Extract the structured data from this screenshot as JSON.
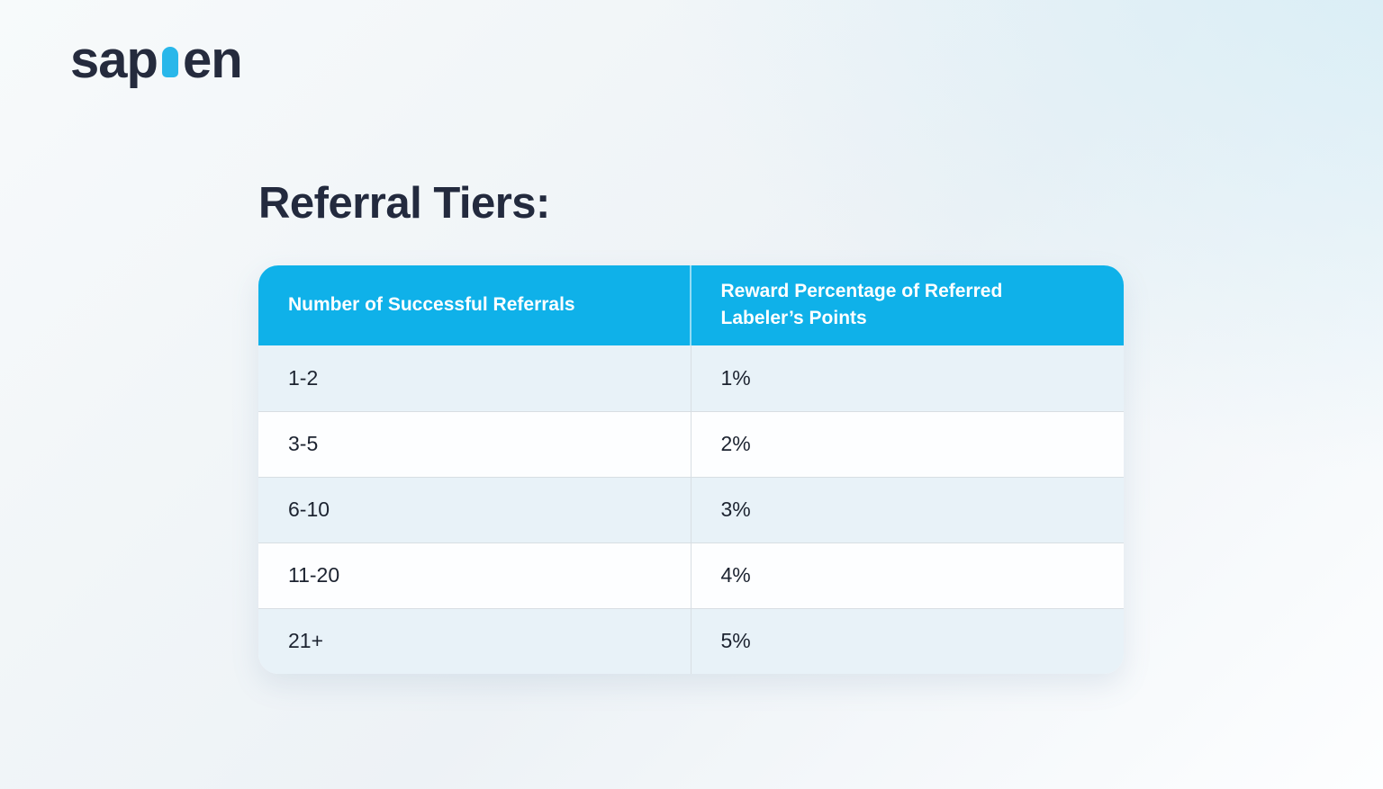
{
  "brand": {
    "logo_prefix": "sap",
    "logo_suffix": "en",
    "person_icon": "person glyph replacing the letter i"
  },
  "page": {
    "title": "Referral Tiers:"
  },
  "table": {
    "columns": [
      "Number of Successful Referrals",
      "Reward Percentage of Referred Labeler’s Points"
    ],
    "rows": [
      {
        "referrals": "1-2",
        "reward": "1%"
      },
      {
        "referrals": "3-5",
        "reward": "2%"
      },
      {
        "referrals": "6-10",
        "reward": "3%"
      },
      {
        "referrals": "11-20",
        "reward": "4%"
      },
      {
        "referrals": "21+",
        "reward": "5%"
      }
    ]
  },
  "colors": {
    "header_background": "#0fb1e9",
    "alt_row_background": "#e8f2f8",
    "plain_row_background": "#fdfeff",
    "row_divider": "#d8dee3",
    "body_text": "#1c2330",
    "title_text": "#232a3e",
    "logo_navy": "#252b3d",
    "logo_cyan": "#29b7ea",
    "header_text": "#ffffff"
  }
}
